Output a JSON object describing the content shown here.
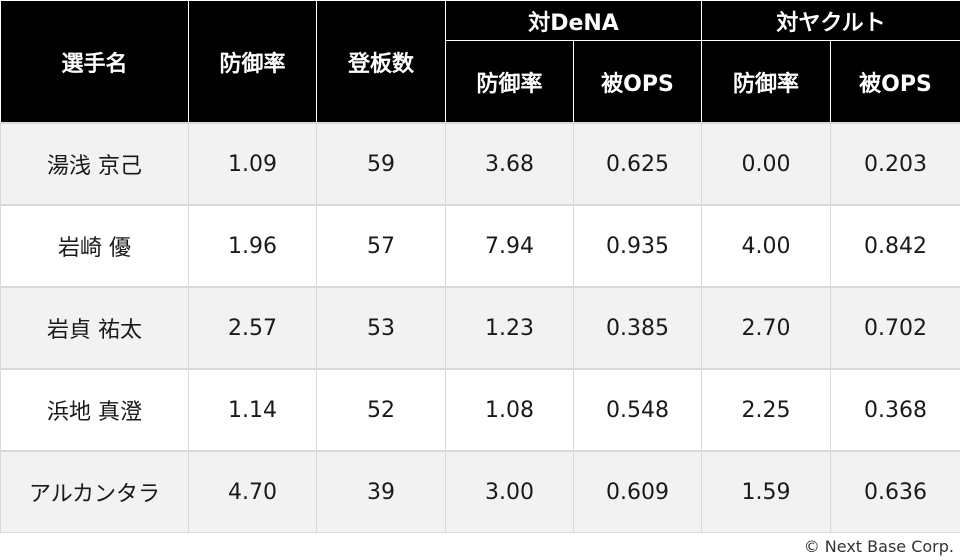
{
  "table": {
    "headers": {
      "player": "選手名",
      "era": "防御率",
      "games": "登板数",
      "vs_dena": "対DeNA",
      "vs_yakult": "対ヤクルト",
      "sub_era": "防御率",
      "sub_ops": "被OPS"
    },
    "rows": [
      {
        "name": "湯浅 京己",
        "era": "1.09",
        "games": "59",
        "dena_era": "3.68",
        "dena_ops": "0.625",
        "yakult_era": "0.00",
        "yakult_ops": "0.203"
      },
      {
        "name": "岩崎 優",
        "era": "1.96",
        "games": "57",
        "dena_era": "7.94",
        "dena_ops": "0.935",
        "yakult_era": "4.00",
        "yakult_ops": "0.842"
      },
      {
        "name": "岩貞 祐太",
        "era": "2.57",
        "games": "53",
        "dena_era": "1.23",
        "dena_ops": "0.385",
        "yakult_era": "2.70",
        "yakult_ops": "0.702"
      },
      {
        "name": "浜地 真澄",
        "era": "1.14",
        "games": "52",
        "dena_era": "1.08",
        "dena_ops": "0.548",
        "yakult_era": "2.25",
        "yakult_ops": "0.368"
      },
      {
        "name": "アルカンタラ",
        "era": "4.70",
        "games": "39",
        "dena_era": "3.00",
        "dena_ops": "0.609",
        "yakult_era": "1.59",
        "yakult_ops": "0.636"
      }
    ]
  },
  "footer": {
    "copyright": "© Next Base Corp."
  }
}
